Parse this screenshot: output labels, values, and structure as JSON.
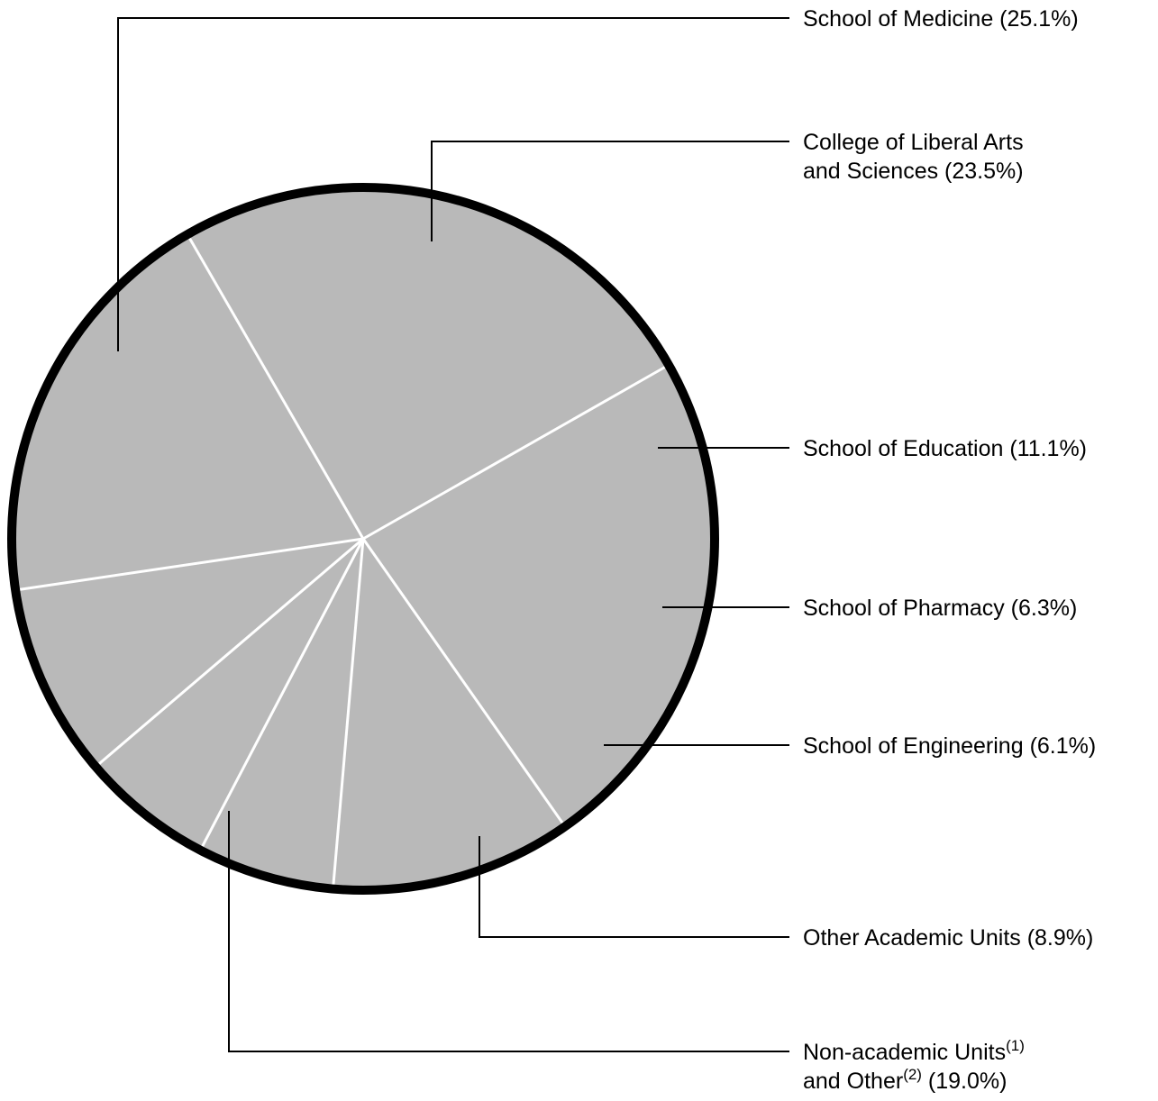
{
  "chart_data": {
    "type": "pie",
    "start_angle_deg": 240,
    "direction": "clockwise",
    "slice_color": "#b9b9b9",
    "separator_color": "#ffffff",
    "outline_color": "#000000",
    "slices": [
      {
        "key": "medicine",
        "value": 25.1,
        "lines": [
          [
            {
              "t": "School of Medicine (25.1%)"
            }
          ]
        ]
      },
      {
        "key": "liberal_arts",
        "value": 23.5,
        "lines": [
          [
            {
              "t": "College of Liberal Arts"
            }
          ],
          [
            {
              "t": "and Sciences (23.5%)"
            }
          ]
        ]
      },
      {
        "key": "education",
        "value": 11.1,
        "lines": [
          [
            {
              "t": "School of Education (11.1%)"
            }
          ]
        ]
      },
      {
        "key": "pharmacy",
        "value": 6.3,
        "lines": [
          [
            {
              "t": "School of Pharmacy (6.3%)"
            }
          ]
        ]
      },
      {
        "key": "engineering",
        "value": 6.1,
        "lines": [
          [
            {
              "t": "School of Engineering (6.1%)"
            }
          ]
        ]
      },
      {
        "key": "other_academic",
        "value": 8.9,
        "lines": [
          [
            {
              "t": "Other Academic Units (8.9%)"
            }
          ]
        ]
      },
      {
        "key": "non_academic",
        "value": 19.0,
        "lines": [
          [
            {
              "t": "Non-academic Units"
            },
            {
              "t": "(1)",
              "sup": true
            }
          ],
          [
            {
              "t": "and Other"
            },
            {
              "t": "(2)",
              "sup": true
            },
            {
              "t": " (19.0%)"
            }
          ]
        ]
      }
    ]
  }
}
